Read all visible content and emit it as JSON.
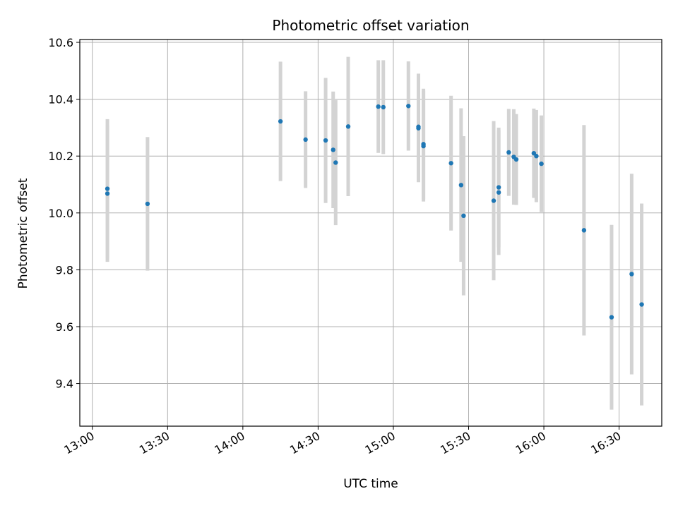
{
  "chart_data": {
    "type": "scatter",
    "title": "Photometric offset variation",
    "xlabel": "UTC time",
    "ylabel": "Photometric offset",
    "grid": true,
    "xlim": [
      "12:55",
      "16:47"
    ],
    "ylim": [
      9.25,
      10.61
    ],
    "xticks": [
      "13:00",
      "13:30",
      "14:00",
      "14:30",
      "15:00",
      "15:30",
      "16:00",
      "16:30"
    ],
    "yticks": [
      "9.4",
      "9.6",
      "9.8",
      "10.0",
      "10.2",
      "10.4",
      "10.6"
    ],
    "colors": {
      "point": "#1f77b4",
      "errorbar": "#d3d3d3",
      "grid": "#b0b0b0"
    },
    "series": [
      {
        "points": [
          {
            "x": "13:06",
            "y": 10.085,
            "err": 0.245
          },
          {
            "x": "13:06",
            "y": 10.068,
            "err": 0.24
          },
          {
            "x": "13:22",
            "y": 10.032,
            "err": 0.235
          },
          {
            "x": "14:15",
            "y": 10.322,
            "err": 0.21
          },
          {
            "x": "14:25",
            "y": 10.258,
            "err": 0.17
          },
          {
            "x": "14:33",
            "y": 10.255,
            "err": 0.22
          },
          {
            "x": "14:36",
            "y": 10.222,
            "err": 0.205
          },
          {
            "x": "14:37",
            "y": 10.177,
            "err": 0.22
          },
          {
            "x": "14:42",
            "y": 10.304,
            "err": 0.245
          },
          {
            "x": "14:54",
            "y": 10.374,
            "err": 0.163
          },
          {
            "x": "14:56",
            "y": 10.372,
            "err": 0.165
          },
          {
            "x": "15:06",
            "y": 10.376,
            "err": 0.157
          },
          {
            "x": "15:10",
            "y": 10.303,
            "err": 0.187
          },
          {
            "x": "15:10",
            "y": 10.298,
            "err": 0.19
          },
          {
            "x": "15:12",
            "y": 10.242,
            "err": 0.195
          },
          {
            "x": "15:12",
            "y": 10.235,
            "err": 0.195
          },
          {
            "x": "15:23",
            "y": 10.175,
            "err": 0.237
          },
          {
            "x": "15:27",
            "y": 10.098,
            "err": 0.27
          },
          {
            "x": "15:28",
            "y": 9.99,
            "err": 0.28
          },
          {
            "x": "15:40",
            "y": 10.043,
            "err": 0.28
          },
          {
            "x": "15:42",
            "y": 10.072,
            "err": 0.22
          },
          {
            "x": "15:42",
            "y": 10.09,
            "err": 0.21
          },
          {
            "x": "15:46",
            "y": 10.213,
            "err": 0.153
          },
          {
            "x": "15:48",
            "y": 10.197,
            "err": 0.168
          },
          {
            "x": "15:49",
            "y": 10.188,
            "err": 0.16
          },
          {
            "x": "15:56",
            "y": 10.21,
            "err": 0.157
          },
          {
            "x": "15:57",
            "y": 10.2,
            "err": 0.162
          },
          {
            "x": "15:59",
            "y": 10.173,
            "err": 0.17
          },
          {
            "x": "16:16",
            "y": 9.939,
            "err": 0.37
          },
          {
            "x": "16:27",
            "y": 9.633,
            "err": 0.325
          },
          {
            "x": "16:35",
            "y": 9.785,
            "err": 0.353
          },
          {
            "x": "16:39",
            "y": 9.678,
            "err": 0.355
          }
        ]
      }
    ]
  }
}
